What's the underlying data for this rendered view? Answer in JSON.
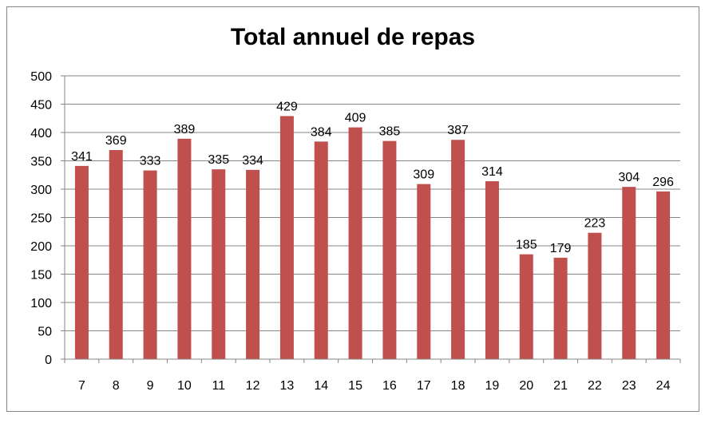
{
  "chart_data": {
    "type": "bar",
    "title": "Total annuel de repas",
    "xlabel": "",
    "ylabel": "",
    "categories": [
      "7",
      "8",
      "9",
      "10",
      "11",
      "12",
      "13",
      "14",
      "15",
      "16",
      "17",
      "18",
      "19",
      "20",
      "21",
      "22",
      "23",
      "24"
    ],
    "values": [
      341,
      369,
      333,
      389,
      335,
      334,
      429,
      384,
      409,
      385,
      309,
      387,
      314,
      185,
      179,
      223,
      304,
      296
    ],
    "ylim": [
      0,
      500
    ],
    "yticks": [
      0,
      50,
      100,
      150,
      200,
      250,
      300,
      350,
      400,
      450,
      500
    ],
    "grid": true,
    "legend": "none",
    "bar_color": "#C0504D",
    "gridline_color": "#868686"
  }
}
